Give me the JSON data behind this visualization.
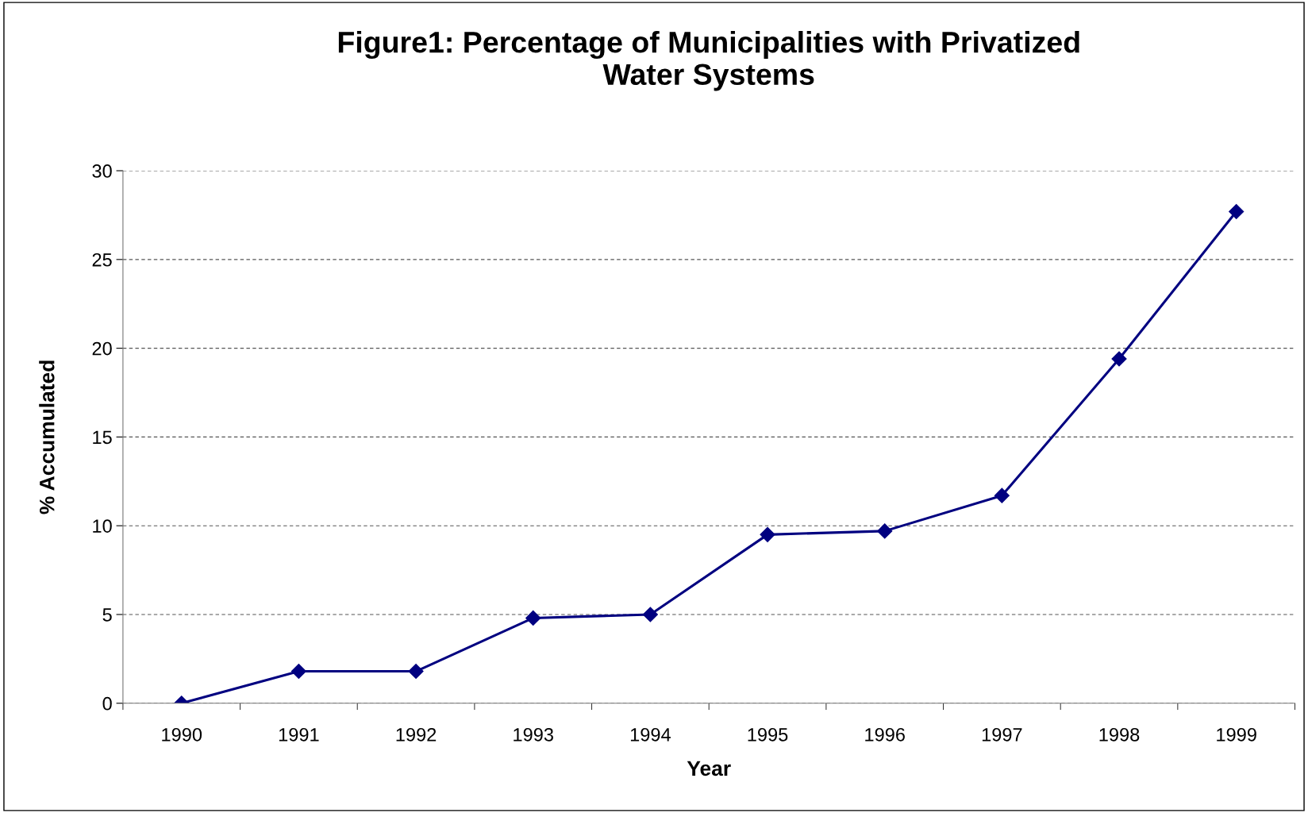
{
  "chart_data": {
    "type": "line",
    "title": "Figure1: Percentage of Municipalities with Privatized\nWater Systems",
    "xlabel": "Year",
    "ylabel": "% Accumulated",
    "categories": [
      "1990",
      "1991",
      "1992",
      "1993",
      "1994",
      "1995",
      "1996",
      "1997",
      "1998",
      "1999"
    ],
    "series": [
      {
        "color": "#000080",
        "values": [
          0,
          1.8,
          1.8,
          4.8,
          5.0,
          9.5,
          9.7,
          11.7,
          19.4,
          27.7
        ]
      }
    ],
    "ylim": [
      0,
      30
    ],
    "yticks": [
      0,
      5,
      10,
      15,
      20,
      25,
      30
    ],
    "grid": "y",
    "marker": "diamond",
    "line_style": "solid"
  }
}
